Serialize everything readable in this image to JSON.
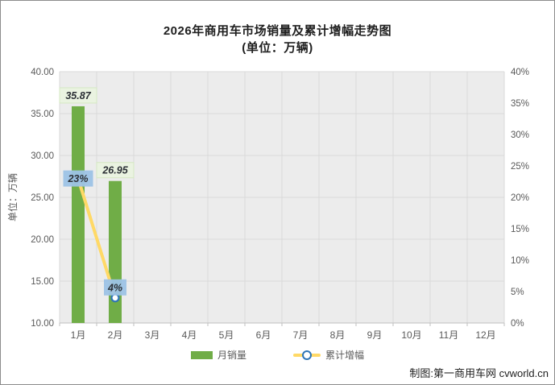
{
  "title": "2026年商用车市场销量及累计增幅走势图",
  "subtitle": "(单位：万辆)",
  "left_axis_title": "单位：万辆",
  "footer_credit": "制图:第一商用车网 cvworld.cn",
  "legend": {
    "items": [
      {
        "label": "月销量",
        "swatch": "bar-swatch"
      },
      {
        "label": "累计增幅",
        "swatch": "line-swatch"
      }
    ]
  },
  "colors": {
    "bar": "#70AD47",
    "line": "#FFD966",
    "marker_fill": "#FFFFFF",
    "marker_ring": "#2E75B6",
    "bar_label_bg": "#EAF3E1",
    "bar_label_border": "#D5E8C4",
    "line_label_bg": "#9DC3E6",
    "label_text": "#2b2f35",
    "plot_bg": "#ECECEC",
    "grid": "#DADADA",
    "axis": "#BFBFBF",
    "tick_text": "#595959",
    "title_text": "#1f1f1f"
  },
  "chart_data": {
    "type": "combo",
    "title": "2026年商用车市场销量及累计增幅走势图",
    "subtitle": "(单位：万辆)",
    "categories": [
      "1月",
      "2月",
      "3月",
      "4月",
      "5月",
      "6月",
      "7月",
      "8月",
      "9月",
      "10月",
      "11月",
      "12月"
    ],
    "series": [
      {
        "name": "月销量",
        "type": "bar",
        "axis": "left",
        "values": [
          35.87,
          26.95,
          null,
          null,
          null,
          null,
          null,
          null,
          null,
          null,
          null,
          null
        ],
        "data_labels": [
          "35.87",
          "26.95",
          null,
          null,
          null,
          null,
          null,
          null,
          null,
          null,
          null,
          null
        ]
      },
      {
        "name": "累计增幅",
        "type": "line",
        "axis": "right",
        "values": [
          23,
          4,
          null,
          null,
          null,
          null,
          null,
          null,
          null,
          null,
          null,
          null
        ],
        "data_labels": [
          "23%",
          "4%",
          null,
          null,
          null,
          null,
          null,
          null,
          null,
          null,
          null,
          null
        ],
        "label_positions": [
          "center",
          "above",
          null,
          null,
          null,
          null,
          null,
          null,
          null,
          null,
          null,
          null
        ]
      }
    ],
    "left_axis": {
      "title": "单位：万辆",
      "min": 10,
      "max": 40,
      "step": 5,
      "tick_labels": [
        "40.00",
        "35.00",
        "30.00",
        "25.00",
        "20.00",
        "15.00",
        "10.00"
      ]
    },
    "right_axis": {
      "min": 0,
      "max": 40,
      "step": 5,
      "tick_labels": [
        "40%",
        "35%",
        "30%",
        "25%",
        "20%",
        "15%",
        "10%",
        "5%",
        "0%"
      ]
    },
    "grid": true,
    "legend_position": "bottom"
  }
}
